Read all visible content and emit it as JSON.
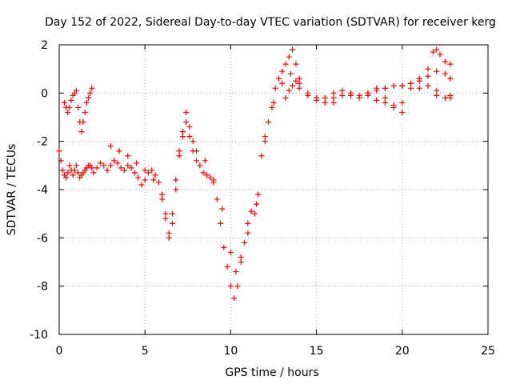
{
  "chart_data": {
    "type": "scatter",
    "title": "Day 152 of 2022, Sidereal Day-to-day VTEC variation (SDTVAR) for receiver kerg",
    "xlabel": "GPS time / hours",
    "ylabel": "SDTVAR / TECUs",
    "xlim": [
      0,
      25
    ],
    "ylim": [
      -10,
      2
    ],
    "xticks": [
      0,
      5,
      10,
      15,
      20,
      25
    ],
    "yticks": [
      -10,
      -8,
      -6,
      -4,
      -2,
      0,
      2
    ],
    "grid": true,
    "marker": "+",
    "color": "#ff0000",
    "series": [
      {
        "x": [
          0.0,
          0.1,
          0.2,
          0.3,
          0.4,
          0.5,
          0.6,
          0.7,
          0.8,
          0.9,
          1.0,
          1.1,
          1.2,
          1.3,
          1.4,
          1.5,
          1.6,
          1.7,
          1.8,
          1.9,
          2.0,
          2.2,
          2.4,
          2.6,
          2.8,
          3.0,
          3.2,
          3.4,
          3.6,
          3.8,
          4.0,
          4.2,
          4.4,
          4.6,
          4.8,
          5.0,
          5.2,
          5.4,
          5.6,
          5.8,
          6.0,
          6.2,
          6.4,
          6.6,
          6.8,
          7.0,
          7.2,
          7.4,
          7.6,
          7.8,
          8.0,
          8.2,
          8.4,
          8.6,
          8.8,
          9.0,
          9.2,
          9.4,
          9.6,
          9.8,
          10.0,
          10.2,
          10.4,
          10.6,
          10.8,
          11.0,
          11.2,
          11.4,
          11.6,
          11.8,
          12.0,
          12.2,
          12.4,
          12.6,
          12.8,
          13.0,
          13.2,
          13.4,
          13.6,
          13.8,
          14.0,
          14.5,
          15.0,
          15.5,
          16.0,
          16.5,
          17.0,
          17.5,
          18.0,
          18.5,
          19.0,
          19.5,
          20.0,
          20.5,
          21.0,
          21.5,
          22.0,
          22.5,
          22.8
        ],
        "y": [
          -2.4,
          -2.8,
          -3.2,
          -3.4,
          -3.5,
          -3.3,
          -3.0,
          -3.2,
          -3.4,
          -3.2,
          -3.0,
          -3.3,
          -3.5,
          -3.4,
          -3.3,
          -3.2,
          -3.1,
          -3.0,
          -3.0,
          -3.1,
          -3.3,
          -3.1,
          -2.9,
          -3.0,
          -3.2,
          -3.0,
          -2.8,
          -2.9,
          -3.1,
          -3.2,
          -3.0,
          -3.1,
          -3.3,
          -3.5,
          -3.8,
          -3.6,
          -3.3,
          -3.2,
          -3.4,
          -3.7,
          -4.2,
          -5.0,
          -5.8,
          -5.0,
          -3.6,
          -2.4,
          -1.6,
          -1.2,
          -1.8,
          -2.4,
          -2.8,
          -3.0,
          -3.3,
          -3.4,
          -3.5,
          -3.7,
          -4.4,
          -5.4,
          -6.4,
          -7.2,
          -8.0,
          -8.5,
          -8.0,
          -7.0,
          -6.2,
          -5.4,
          -4.9,
          -5.0,
          -4.2,
          -2.6,
          -1.8,
          -1.2,
          -0.6,
          0.2,
          0.6,
          0.9,
          1.2,
          1.5,
          1.8,
          1.2,
          0.4,
          0.0,
          -0.2,
          -0.4,
          -0.2,
          -0.1,
          0.0,
          -0.1,
          -0.1,
          0.1,
          0.2,
          0.3,
          0.3,
          0.4,
          0.5,
          0.7,
          0.9,
          0.8,
          0.6
        ]
      },
      {
        "x": [
          0.3,
          0.4,
          0.5,
          0.6,
          0.7,
          0.8,
          0.9,
          1.0,
          1.1,
          1.2,
          1.3,
          1.4,
          1.5,
          1.6,
          1.7,
          1.8,
          1.9
        ],
        "y": [
          -0.4,
          -0.6,
          -0.8,
          -0.6,
          -0.3,
          -0.1,
          0.0,
          0.1,
          -0.6,
          -1.2,
          -1.6,
          -1.2,
          -0.8,
          -0.4,
          -0.2,
          0.0,
          0.2
        ]
      },
      {
        "x": [
          3.0,
          3.5,
          4.0,
          4.5,
          5.0,
          5.5,
          6.0,
          6.2,
          6.4,
          6.6,
          6.8,
          7.0,
          7.2,
          7.4,
          7.6,
          7.8,
          8.0,
          8.5,
          9.0,
          9.5,
          10.0,
          10.3,
          10.6,
          11.0,
          11.5,
          12.0,
          12.5,
          13.0,
          13.5,
          14.0,
          15.0,
          16.0,
          17.0,
          18.0,
          19.0,
          20.0,
          21.0,
          22.0,
          22.8
        ],
        "y": [
          -2.2,
          -2.4,
          -2.6,
          -2.9,
          -3.2,
          -3.6,
          -4.4,
          -5.2,
          -6.0,
          -5.4,
          -4.0,
          -2.6,
          -1.8,
          -0.8,
          -1.4,
          -2.0,
          -2.4,
          -2.8,
          -3.6,
          -4.8,
          -6.6,
          -7.4,
          -6.8,
          -5.8,
          -4.6,
          -2.0,
          -0.4,
          0.4,
          0.8,
          0.6,
          -0.2,
          -0.4,
          -0.1,
          0.0,
          0.2,
          0.3,
          0.2,
          0.1,
          -0.2
        ]
      },
      {
        "x": [
          13.2,
          13.4,
          13.6,
          13.8,
          14.0,
          14.5,
          15.0,
          15.5,
          16.0,
          16.5,
          17.0,
          17.5,
          18.0,
          18.5,
          19.0,
          19.5,
          20.0,
          20.5,
          21.0,
          21.5,
          21.8,
          22.0,
          22.2,
          22.5,
          22.8
        ],
        "y": [
          -0.2,
          0.1,
          0.3,
          0.5,
          0.2,
          -0.1,
          -0.3,
          -0.2,
          0.0,
          0.1,
          -0.1,
          -0.2,
          0.0,
          -0.3,
          -0.4,
          -0.5,
          -0.4,
          0.2,
          0.6,
          1.0,
          1.7,
          1.8,
          1.6,
          1.3,
          1.2
        ]
      },
      {
        "x": [
          18.5,
          19.0,
          19.5,
          20.0,
          20.5,
          21.0,
          21.5,
          22.0,
          22.5,
          22.8
        ],
        "y": [
          0.2,
          -0.2,
          -0.6,
          -0.8,
          0.4,
          0.6,
          0.3,
          -0.1,
          -0.2,
          -0.1
        ]
      }
    ]
  }
}
